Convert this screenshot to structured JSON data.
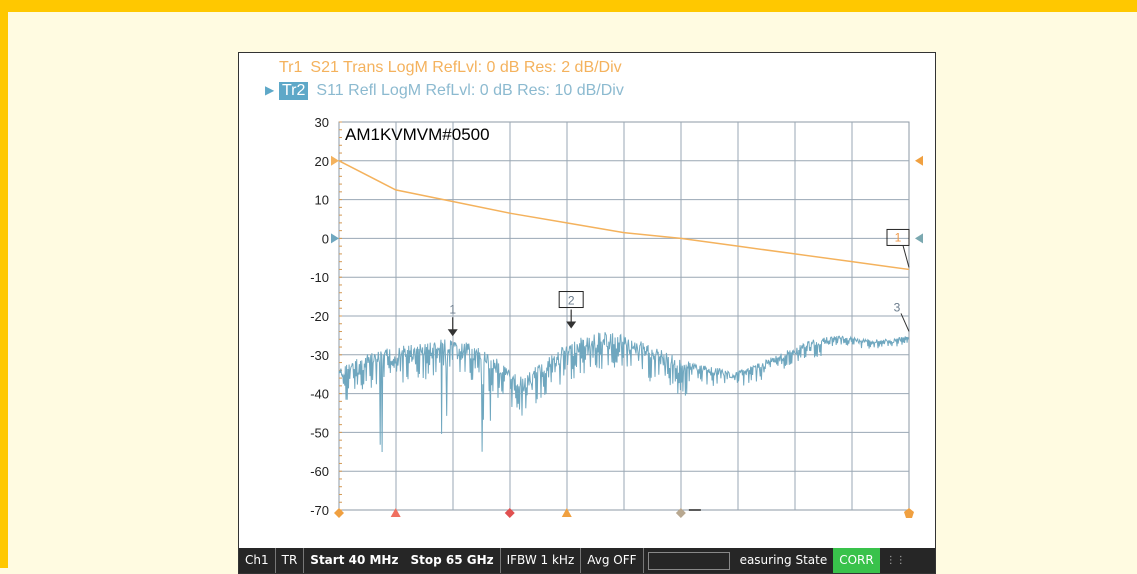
{
  "traces": [
    {
      "id": "Tr1",
      "label": "S21 Trans LogM RefLvl: 0  dB Res: 2  dB/Div",
      "color": "#f4b25d"
    },
    {
      "id": "Tr2",
      "label": "S11 Refl LogM RefLvl: 0  dB Res: 10  dB/Div",
      "color": "#5ea8c8",
      "active": true
    }
  ],
  "annotation": "AM1KVMVM#0500",
  "chart_data": {
    "type": "line",
    "title": "",
    "xlabel": "",
    "ylabel": "",
    "xlim": [
      0.04,
      65
    ],
    "x_unit": "GHz",
    "ylim": [
      -70,
      30
    ],
    "y_ticks": [
      30,
      20,
      10,
      0,
      -10,
      -20,
      -30,
      -40,
      -50,
      -60,
      -70
    ],
    "grid": true,
    "x_divisions": 10,
    "series": [
      {
        "name": "Tr1",
        "color": "#f4b25d",
        "x": [
          0.04,
          6.5,
          13,
          19.5,
          26,
          32.5,
          39,
          45.5,
          52,
          58.5,
          65
        ],
        "y": [
          20,
          12.5,
          9.5,
          6.5,
          4,
          1.5,
          0,
          -2,
          -4,
          -6,
          -8
        ],
        "reference_marker": 20
      },
      {
        "name": "Tr2",
        "color": "#6fa7bf",
        "x": [
          0.04,
          3,
          6,
          9,
          12,
          15,
          18,
          21,
          24,
          27,
          30,
          33,
          36,
          39,
          42,
          45,
          48,
          51,
          54,
          57,
          60,
          63,
          65
        ],
        "y": [
          -33,
          -30,
          -28,
          -27,
          -26,
          -27,
          -31,
          -36,
          -30,
          -26,
          -24,
          -25,
          -28,
          -31,
          -33,
          -34,
          -32,
          -29,
          -26,
          -25,
          -26,
          -26,
          -25
        ],
        "reference_marker": 0
      }
    ],
    "markers": [
      {
        "label": "1",
        "trace": "Tr2",
        "x": 13,
        "y": -26
      },
      {
        "label": "2",
        "trace": "Tr2",
        "x": 26.5,
        "y": -24,
        "boxed": true
      },
      {
        "label": "3",
        "trace": "Tr2",
        "x": 65,
        "y": -25
      },
      {
        "label": "1",
        "trace": "Tr1",
        "x": 65,
        "y": -8,
        "boxed": true
      }
    ]
  },
  "statusbar": {
    "channel": "Ch1",
    "mode": "TR",
    "start": "Start 40 MHz",
    "stop": "Stop 65 GHz",
    "ifbw": "IFBW 1 kHz",
    "avg": "Avg OFF",
    "state": "easuring State",
    "corr": "CORR",
    "corr_color": "#39c24b"
  }
}
